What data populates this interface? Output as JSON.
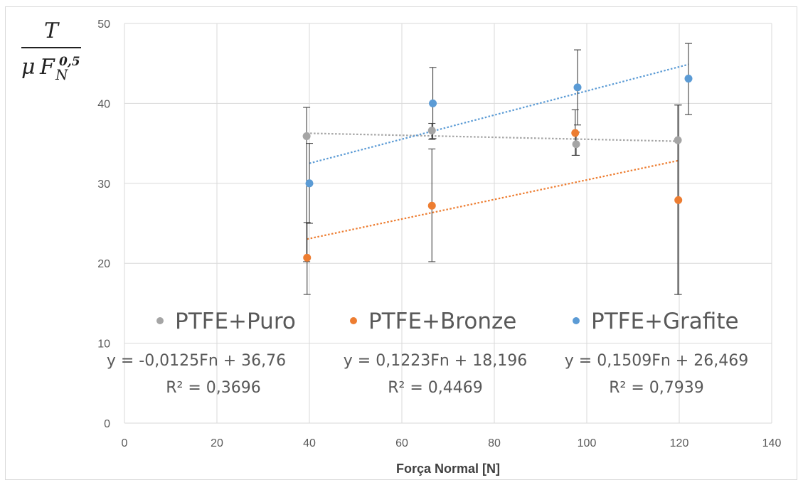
{
  "chart_data": {
    "type": "scatter",
    "xlabel": "Força Normal [N]",
    "ylabel": {
      "numerator": "T",
      "denominator_mu": "μ",
      "denominator_F": "F",
      "subscript": "N",
      "superscript": "0,5"
    },
    "xlim": [
      0,
      140
    ],
    "ylim": [
      0,
      50
    ],
    "x_ticks": [
      "0",
      "20",
      "40",
      "60",
      "80",
      "100",
      "120",
      "140"
    ],
    "y_ticks": [
      "0",
      "10",
      "20",
      "30",
      "40",
      "50"
    ],
    "grid": true,
    "legend_position": "inside-bottom",
    "series": [
      {
        "name": "PTFE+Puro",
        "color": "#a5a5a5",
        "points": [
          {
            "x": 39.4,
            "y": 35.9,
            "err_low": 20.2,
            "err_high": 39.5
          },
          {
            "x": 66.5,
            "y": 36.6,
            "err_low": 35.5,
            "err_high": 37.5
          },
          {
            "x": 97.7,
            "y": 34.9,
            "err_low": 33.5,
            "err_high": 36.4
          },
          {
            "x": 119.7,
            "y": 35.4,
            "err_low": 16.1,
            "err_high": 39.8
          }
        ],
        "trendline": {
          "slope": -0.0125,
          "intercept": 36.76,
          "x_range": [
            39.4,
            119.7
          ]
        },
        "equation": "y = -0,0125Fn + 36,76",
        "r2": "R² = 0,3696"
      },
      {
        "name": "PTFE+Bronze",
        "color": "#ed7d31",
        "points": [
          {
            "x": 39.5,
            "y": 20.7,
            "err_low": 16.1,
            "err_high": 25.1
          },
          {
            "x": 66.5,
            "y": 27.2,
            "err_low": 20.2,
            "err_high": 34.3
          },
          {
            "x": 97.5,
            "y": 36.3,
            "err_low": 33.5,
            "err_high": 39.2
          },
          {
            "x": 119.8,
            "y": 27.9,
            "err_low": 16.1,
            "err_high": 39.8
          }
        ],
        "trendline": {
          "slope": 0.1223,
          "intercept": 18.196,
          "x_range": [
            39.5,
            119.8
          ]
        },
        "equation": "y = 0,1223Fn + 18,196",
        "r2": "R² = 0,4469"
      },
      {
        "name": "PTFE+Grafite",
        "color": "#5b9bd5",
        "points": [
          {
            "x": 40.0,
            "y": 30.0,
            "err_low": 25.0,
            "err_high": 35.0
          },
          {
            "x": 66.7,
            "y": 40.0,
            "err_low": 35.6,
            "err_high": 44.5
          },
          {
            "x": 98.0,
            "y": 42.0,
            "err_low": 37.3,
            "err_high": 46.7
          },
          {
            "x": 122.0,
            "y": 43.1,
            "err_low": 38.6,
            "err_high": 47.5
          }
        ],
        "trendline": {
          "slope": 0.1509,
          "intercept": 26.469,
          "x_range": [
            40.0,
            122.0
          ]
        },
        "equation": "y = 0,1509Fn + 26,469",
        "r2": "R² = 0,7939"
      }
    ]
  }
}
